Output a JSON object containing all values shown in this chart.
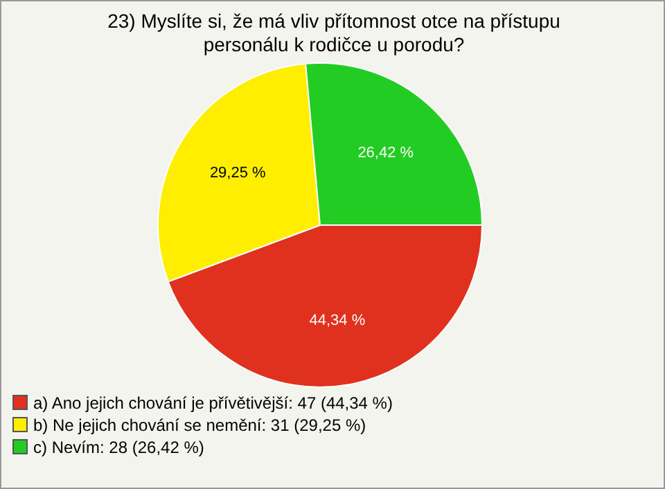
{
  "chart_data": {
    "type": "pie",
    "title": "23) Myslíte si, že má vliv přítomnost otce na přístupu personálu k rodičce u porodu?",
    "categories": [
      "a) Ano jejich chování je přívětivější: 47 (44,34 %)",
      "b) Ne jejich chování se nemění: 31 (29,25 %)",
      "c) Nevím: 28 (26,42 %)"
    ],
    "values": [
      44.34,
      29.25,
      26.42
    ],
    "colors": [
      "#e0301e",
      "#ffee00",
      "#22cc22"
    ],
    "value_labels": [
      "44,34 %",
      "29,25 %",
      "26,42 %"
    ],
    "legend": "bottom left"
  }
}
